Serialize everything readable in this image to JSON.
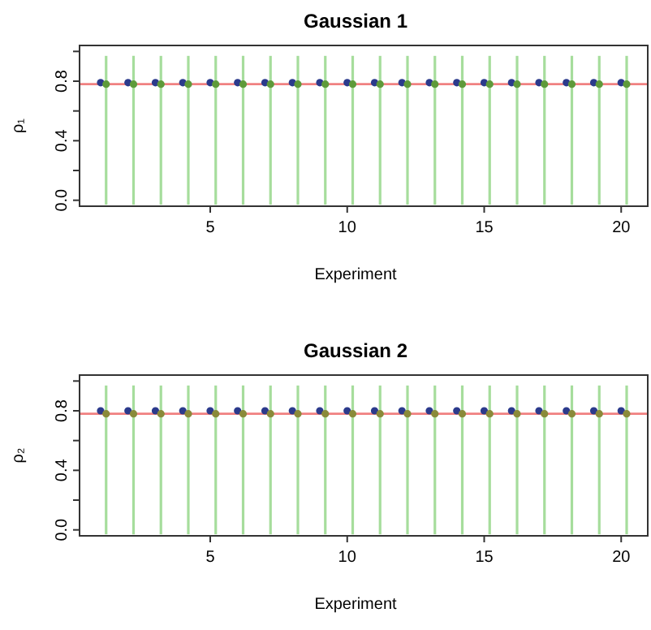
{
  "chart_data": [
    {
      "type": "scatter",
      "title": "Gaussian 1",
      "xlabel": "Experiment",
      "ylabel": "ρ₁",
      "xlim": [
        0.23,
        20.97
      ],
      "xticks": [
        5,
        10,
        15,
        20
      ],
      "ylim": [
        -0.04,
        1.04
      ],
      "yticks": [
        {
          "value": 0,
          "label": "0.0"
        },
        {
          "value": 0.2,
          "label": null
        },
        {
          "value": 0.4,
          "label": "0.4"
        },
        {
          "value": 0.6,
          "label": null
        },
        {
          "value": 0.8,
          "label": "0.8"
        },
        {
          "value": 1,
          "label": null
        }
      ],
      "marker": "circle",
      "grid": false,
      "ref_lines": [
        {
          "axis": "y",
          "value": 0.78,
          "color": "#f08080"
        }
      ],
      "series": [
        {
          "color": "#2b3a8c",
          "x": [
            1,
            2,
            3,
            4,
            5,
            6,
            7,
            8,
            9,
            10,
            11,
            12,
            13,
            14,
            15,
            16,
            17,
            18,
            19,
            20
          ],
          "values": [
            0.79,
            0.79,
            0.79,
            0.79,
            0.79,
            0.79,
            0.79,
            0.79,
            0.79,
            0.79,
            0.79,
            0.79,
            0.79,
            0.79,
            0.79,
            0.79,
            0.79,
            0.79,
            0.79,
            0.79
          ]
        },
        {
          "color": "#5e9a3a",
          "x": [
            1.2,
            2.2,
            3.2,
            4.2,
            5.2,
            6.2,
            7.2,
            8.2,
            9.2,
            10.2,
            11.2,
            12.2,
            13.2,
            14.2,
            15.2,
            16.2,
            17.2,
            18.2,
            19.2,
            20.2
          ],
          "values": [
            0.78,
            0.78,
            0.78,
            0.78,
            0.78,
            0.78,
            0.78,
            0.78,
            0.78,
            0.78,
            0.78,
            0.78,
            0.78,
            0.78,
            0.78,
            0.78,
            0.78,
            0.78,
            0.78,
            0.78
          ],
          "errors": [
            [
              -0.03,
              0.97
            ],
            [
              -0.03,
              0.97
            ],
            [
              -0.03,
              0.97
            ],
            [
              -0.03,
              0.97
            ],
            [
              -0.03,
              0.97
            ],
            [
              -0.03,
              0.97
            ],
            [
              -0.03,
              0.97
            ],
            [
              -0.03,
              0.97
            ],
            [
              -0.03,
              0.97
            ],
            [
              -0.03,
              0.97
            ],
            [
              -0.03,
              0.97
            ],
            [
              -0.03,
              0.97
            ],
            [
              -0.03,
              0.97
            ],
            [
              -0.03,
              0.97
            ],
            [
              -0.03,
              0.97
            ],
            [
              -0.03,
              0.97
            ],
            [
              -0.03,
              0.97
            ],
            [
              -0.03,
              0.97
            ],
            [
              -0.03,
              0.97
            ],
            [
              -0.03,
              0.97
            ]
          ]
        }
      ]
    },
    {
      "type": "scatter",
      "title": "Gaussian 2",
      "xlabel": "Experiment",
      "ylabel": "ρ₂",
      "xlim": [
        0.23,
        20.97
      ],
      "xticks": [
        5,
        10,
        15,
        20
      ],
      "ylim": [
        -0.04,
        1.04
      ],
      "yticks": [
        {
          "value": 0,
          "label": "0.0"
        },
        {
          "value": 0.2,
          "label": null
        },
        {
          "value": 0.4,
          "label": "0.4"
        },
        {
          "value": 0.6,
          "label": null
        },
        {
          "value": 0.8,
          "label": "0.8"
        },
        {
          "value": 1,
          "label": null
        }
      ],
      "marker": "circle",
      "grid": false,
      "ref_lines": [
        {
          "axis": "y",
          "value": 0.78,
          "color": "#f08080"
        }
      ],
      "series": [
        {
          "color": "#2b3a8c",
          "x": [
            1,
            2,
            3,
            4,
            5,
            6,
            7,
            8,
            9,
            10,
            11,
            12,
            13,
            14,
            15,
            16,
            17,
            18,
            19,
            20
          ],
          "values": [
            0.8,
            0.8,
            0.8,
            0.8,
            0.8,
            0.8,
            0.8,
            0.8,
            0.8,
            0.8,
            0.8,
            0.8,
            0.8,
            0.8,
            0.8,
            0.8,
            0.8,
            0.8,
            0.8,
            0.8
          ]
        },
        {
          "color": "#8a8a3a",
          "x": [
            1.2,
            2.2,
            3.2,
            4.2,
            5.2,
            6.2,
            7.2,
            8.2,
            9.2,
            10.2,
            11.2,
            12.2,
            13.2,
            14.2,
            15.2,
            16.2,
            17.2,
            18.2,
            19.2,
            20.2
          ],
          "values": [
            0.78,
            0.78,
            0.78,
            0.78,
            0.78,
            0.78,
            0.78,
            0.78,
            0.78,
            0.78,
            0.78,
            0.78,
            0.78,
            0.78,
            0.78,
            0.78,
            0.78,
            0.78,
            0.78,
            0.78
          ],
          "errors": [
            [
              -0.03,
              0.97
            ],
            [
              -0.03,
              0.97
            ],
            [
              -0.03,
              0.97
            ],
            [
              -0.03,
              0.97
            ],
            [
              -0.03,
              0.97
            ],
            [
              -0.03,
              0.97
            ],
            [
              -0.03,
              0.97
            ],
            [
              -0.03,
              0.97
            ],
            [
              -0.03,
              0.97
            ],
            [
              -0.03,
              0.97
            ],
            [
              -0.03,
              0.97
            ],
            [
              -0.03,
              0.97
            ],
            [
              -0.03,
              0.97
            ],
            [
              -0.03,
              0.97
            ],
            [
              -0.03,
              0.97
            ],
            [
              -0.03,
              0.97
            ],
            [
              -0.03,
              0.97
            ],
            [
              -0.03,
              0.97
            ],
            [
              -0.03,
              0.97
            ],
            [
              -0.03,
              0.97
            ]
          ]
        }
      ]
    }
  ]
}
